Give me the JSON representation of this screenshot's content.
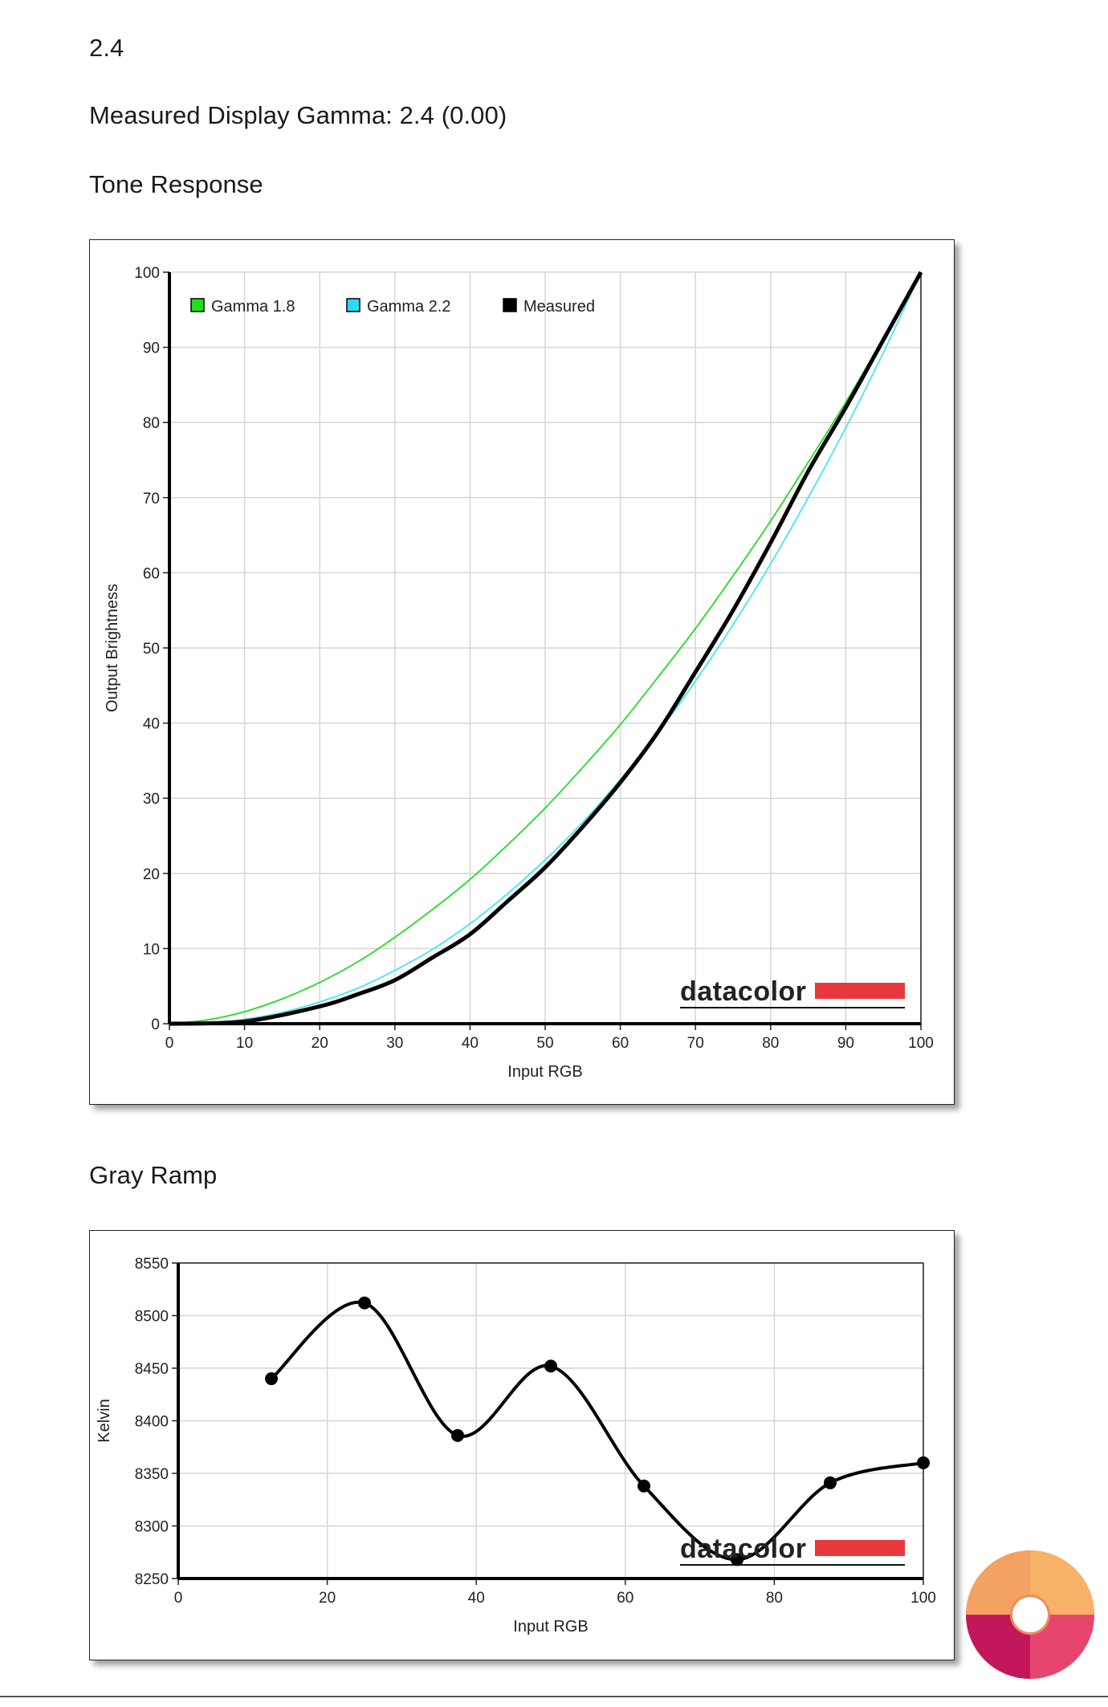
{
  "page": {
    "gamma_value": "2.4",
    "measured_line": "Measured Display Gamma: 2.4 (0.00)",
    "tone_heading": "Tone Response",
    "gray_heading": "Gray Ramp"
  },
  "brand": {
    "watermark_text": "datacolor",
    "watermark_bar_color": "#e8383c"
  },
  "chart_data": [
    {
      "type": "line",
      "title": "",
      "xlabel": "Input RGB",
      "ylabel": "Output Brightness",
      "xlim": [
        0,
        100
      ],
      "ylim": [
        0,
        100
      ],
      "xticks": [
        0,
        10,
        20,
        30,
        40,
        50,
        60,
        70,
        80,
        90,
        100
      ],
      "yticks": [
        0,
        10,
        20,
        30,
        40,
        50,
        60,
        70,
        80,
        90,
        100
      ],
      "grid": true,
      "legend_position": "top-left",
      "series": [
        {
          "name": "Gamma 1.8",
          "color": "#22dd22",
          "swatch": "#22dd22",
          "stroke_weight": "thin",
          "x": [
            0,
            5,
            10,
            15,
            20,
            25,
            30,
            35,
            40,
            45,
            50,
            55,
            60,
            65,
            70,
            75,
            80,
            85,
            90,
            95,
            100
          ],
          "y": [
            0,
            0.5,
            1.6,
            3.3,
            5.5,
            8.2,
            11.5,
            15.2,
            19.2,
            23.8,
            28.7,
            34.1,
            39.8,
            46.1,
            52.6,
            59.6,
            66.9,
            74.7,
            82.7,
            91.2,
            100
          ]
        },
        {
          "name": "Gamma 2.2",
          "color": "#44e8f0",
          "swatch": "#2fd9f0",
          "stroke_weight": "thin",
          "x": [
            0,
            5,
            10,
            15,
            20,
            25,
            30,
            35,
            40,
            45,
            50,
            55,
            60,
            65,
            70,
            75,
            80,
            85,
            90,
            95,
            100
          ],
          "y": [
            0,
            0.1,
            0.6,
            1.5,
            2.9,
            4.7,
            7.1,
            9.9,
            13.3,
            17.3,
            21.8,
            26.8,
            32.5,
            38.7,
            45.6,
            53.1,
            61.2,
            70,
            79.3,
            89.3,
            100
          ]
        },
        {
          "name": "Measured",
          "color": "#000000",
          "swatch": "#000000",
          "stroke_weight": "thick",
          "x": [
            0,
            10,
            20,
            25,
            30,
            35,
            40,
            45,
            50,
            55,
            60,
            65,
            70,
            75,
            80,
            85,
            90,
            95,
            100
          ],
          "y": [
            0,
            0.3,
            2.3,
            3.9,
            5.8,
            8.8,
            11.9,
            16.3,
            20.8,
            26.2,
            32.1,
            38.8,
            46.8,
            55,
            64,
            73.5,
            82,
            91,
            100
          ]
        }
      ]
    },
    {
      "type": "line",
      "title": "",
      "xlabel": "Input RGB",
      "ylabel": "Kelvin",
      "xlim": [
        0,
        100
      ],
      "ylim": [
        8250,
        8550
      ],
      "xticks": [
        0,
        20,
        40,
        60,
        80,
        100
      ],
      "yticks": [
        8250,
        8300,
        8350,
        8400,
        8450,
        8500,
        8550
      ],
      "grid": true,
      "smooth": true,
      "markers": true,
      "series": [
        {
          "color": "#000000",
          "x": [
            12.5,
            25,
            37.5,
            50,
            62.5,
            75,
            87.5,
            100
          ],
          "y": [
            8440,
            8512,
            8386,
            8452,
            8338,
            8268,
            8341,
            8360
          ]
        }
      ]
    }
  ]
}
